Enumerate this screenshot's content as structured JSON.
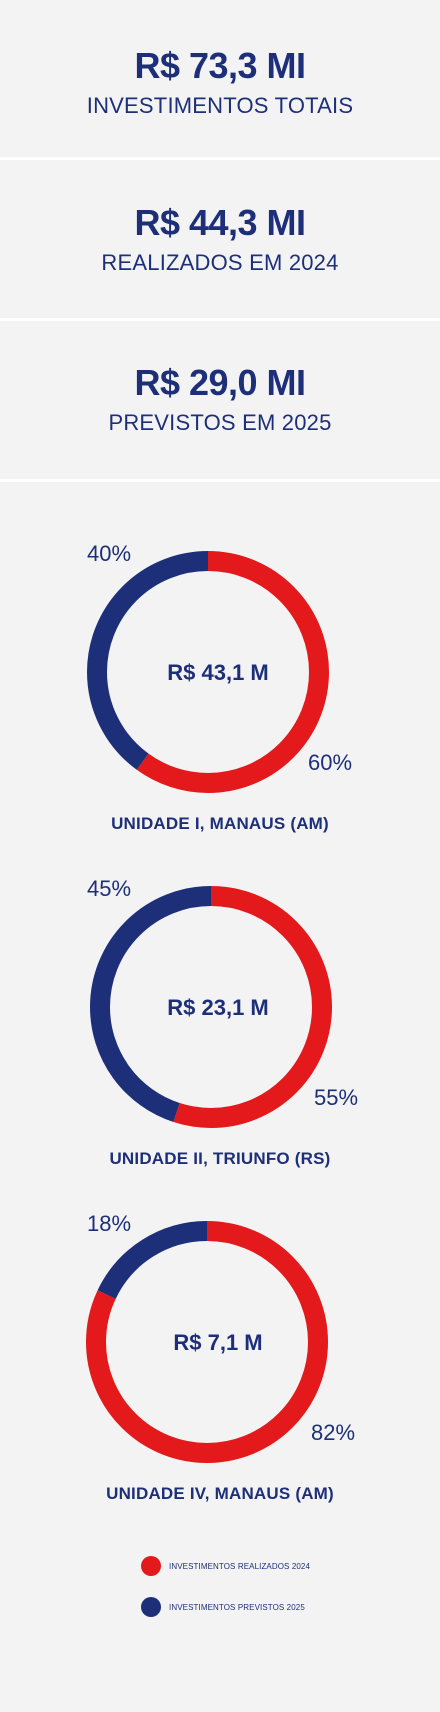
{
  "stats": [
    {
      "value": "R$ 73,3 MI",
      "label": "INVESTIMENTOS TOTAIS"
    },
    {
      "value": "R$ 44,3 MI",
      "label": "REALIZADOS EM 2024"
    },
    {
      "value": "R$ 29,0 MI",
      "label": "PREVISTOS EM 2025"
    }
  ],
  "colors": {
    "realizado": "#e3191b",
    "previsto": "#1e2f7a",
    "background": "#f3f3f3"
  },
  "chart_data": [
    {
      "type": "pie",
      "title": "",
      "center_label": "R$ 43,1 M",
      "unit_label": "UNIDADE I, MANAUS (AM)",
      "slices": [
        {
          "name": "INVESTIMENTOS REALIZADOS 2024",
          "value": 60,
          "label": "60%"
        },
        {
          "name": "INVESTIMENTOS PREVISTOS 2025",
          "value": 40,
          "label": "40%"
        }
      ]
    },
    {
      "type": "pie",
      "title": "",
      "center_label": "R$ 23,1 M",
      "unit_label": "UNIDADE II, TRIUNFO (RS)",
      "slices": [
        {
          "name": "INVESTIMENTOS REALIZADOS 2024",
          "value": 55,
          "label": "55%"
        },
        {
          "name": "INVESTIMENTOS PREVISTOS 2025",
          "value": 45,
          "label": "45%"
        }
      ]
    },
    {
      "type": "pie",
      "title": "",
      "center_label": "R$ 7,1 M",
      "unit_label": "UNIDADE IV, MANAUS (AM)",
      "slices": [
        {
          "name": "INVESTIMENTOS REALIZADOS 2024",
          "value": 82,
          "label": "82%"
        },
        {
          "name": "INVESTIMENTOS PREVISTOS 2025",
          "value": 18,
          "label": "18%"
        }
      ]
    }
  ],
  "legend": [
    {
      "label": "INVESTIMENTOS REALIZADOS 2024",
      "color": "#e3191b"
    },
    {
      "label": "INVESTIMENTOS PREVISTOS 2025",
      "color": "#1e2f7a"
    }
  ]
}
